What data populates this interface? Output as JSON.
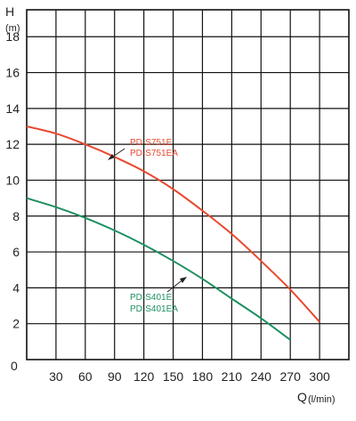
{
  "chart_data": {
    "type": "line",
    "ylabel": "H",
    "yunit": "(m)",
    "xlabel": "Q",
    "xunit": "(l/min)",
    "xlim": [
      0,
      330
    ],
    "ylim": [
      0,
      19.5
    ],
    "x_ticks": [
      30,
      60,
      90,
      120,
      150,
      180,
      210,
      240,
      270,
      300
    ],
    "y_ticks": [
      2,
      4,
      6,
      8,
      10,
      12,
      14,
      16,
      18
    ],
    "origin_label": "0",
    "grid": true,
    "series": [
      {
        "name": "PD-S751E / PD-S751EA",
        "labels": [
          "PD-S751E",
          "PD-S751EA"
        ],
        "color": "#e8492f",
        "x": [
          0,
          30,
          60,
          90,
          120,
          150,
          180,
          210,
          240,
          270,
          300
        ],
        "y": [
          13.0,
          12.6,
          12.0,
          11.3,
          10.5,
          9.5,
          8.3,
          7.0,
          5.5,
          3.9,
          2.1
        ]
      },
      {
        "name": "PD-S401E / PD-S401EA",
        "labels": [
          "PD-S401E",
          "PD-S401EA"
        ],
        "color": "#1e9060",
        "x": [
          0,
          30,
          60,
          90,
          120,
          150,
          180,
          210,
          240,
          270
        ],
        "y": [
          9.0,
          8.5,
          7.9,
          7.2,
          6.4,
          5.5,
          4.5,
          3.4,
          2.3,
          1.1
        ]
      }
    ]
  }
}
